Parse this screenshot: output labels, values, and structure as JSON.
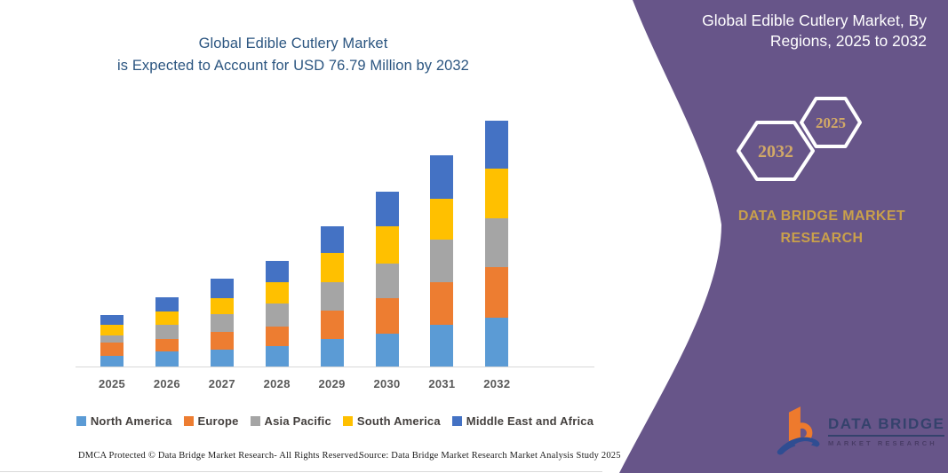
{
  "title": {
    "line1": "Global Edible Cutlery Market",
    "line2": "is Expected to Account for USD 76.79 Million by 2032"
  },
  "side_panel": {
    "heading_line1": "Global Edible Cutlery Market, By",
    "heading_line2": "Regions, 2025 to 2032",
    "hexagon_back_label": "2032",
    "hexagon_front_label": "2025",
    "brand_line1": "DATA BRIDGE MARKET",
    "brand_line2": "RESEARCH",
    "colors": {
      "panel_bg": "#675589",
      "gold": "#c9a04b",
      "hex_gold": "#d2a967",
      "heading_text": "#ffffff"
    }
  },
  "logo": {
    "name": "DATA BRIDGE",
    "sub": "MARKET RESEARCH",
    "orange": "#ee7a2d",
    "navy": "#2f4d92"
  },
  "footer": {
    "dmca": "DMCA Protected © Data Bridge Market Research-  All Rights Reserved.",
    "source": "Source: Data Bridge Market Research  Market Analysis Study 2025"
  },
  "chart_data": {
    "type": "bar",
    "stacked": true,
    "title": "Global Edible Cutlery Market is Expected to Account for USD 76.79 Million by 2032",
    "unit": "USD Million",
    "categories": [
      "2025",
      "2026",
      "2027",
      "2028",
      "2029",
      "2030",
      "2031",
      "2032"
    ],
    "series": [
      {
        "name": "North America",
        "color": "#5b9bd5",
        "values": [
          3.5,
          4.9,
          5.5,
          6.7,
          8.8,
          10.4,
          13.2,
          15.5
        ]
      },
      {
        "name": "Europe",
        "color": "#ed7d31",
        "values": [
          4.2,
          4.1,
          5.6,
          6.0,
          9.0,
          11.2,
          13.4,
          15.7
        ]
      },
      {
        "name": "Asia Pacific",
        "color": "#a5a5a5",
        "values": [
          2.3,
          4.4,
          5.4,
          7.1,
          8.7,
          10.7,
          13.2,
          15.2
        ]
      },
      {
        "name": "South America",
        "color": "#ffc000",
        "values": [
          3.2,
          4.1,
          5.1,
          6.8,
          9.1,
          11.7,
          12.9,
          15.5
        ]
      },
      {
        "name": "Middle East and Africa",
        "color": "#4472c4",
        "values": [
          3.2,
          4.3,
          6.0,
          6.6,
          8.3,
          10.9,
          13.3,
          14.9
        ]
      }
    ],
    "totals": [
      16.4,
      21.8,
      27.6,
      33.2,
      43.9,
      54.9,
      66.0,
      76.79
    ],
    "ylim": [
      0,
      80
    ],
    "gridlines": false,
    "legend_position": "bottom",
    "axis_line_color": "#d9d9d9",
    "tick_label_color": "#595959"
  }
}
